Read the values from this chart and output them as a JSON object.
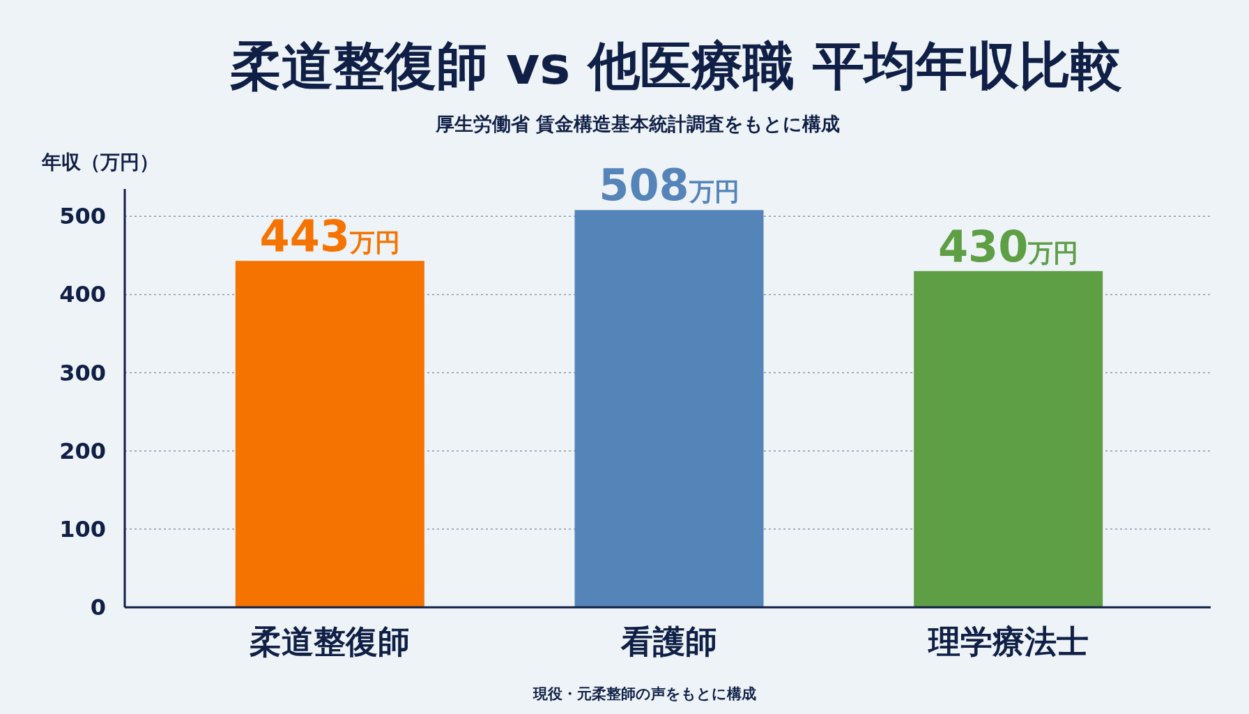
{
  "chart_data": {
    "type": "bar",
    "title": "柔道整復師 vs 他医療職 平均年収比較",
    "subtitle": "厚生労働省 賃金構造基本統計調査をもとに構成",
    "ylabel": "年収（万円）",
    "categories": [
      "柔道整復師",
      "看護師",
      "理学療法士"
    ],
    "values": [
      443,
      508,
      430
    ],
    "colors": [
      "#f57300",
      "#5584b8",
      "#5e9e45"
    ],
    "value_labels": [
      "443万円",
      "508万円",
      "430万円"
    ],
    "ylim": [
      0,
      535
    ],
    "yticks": [
      0,
      100,
      200,
      300,
      400,
      500
    ],
    "grid": "y",
    "line_style": "dotted",
    "annotations": [
      "現役・元柔整師の声をもとに構成"
    ]
  }
}
